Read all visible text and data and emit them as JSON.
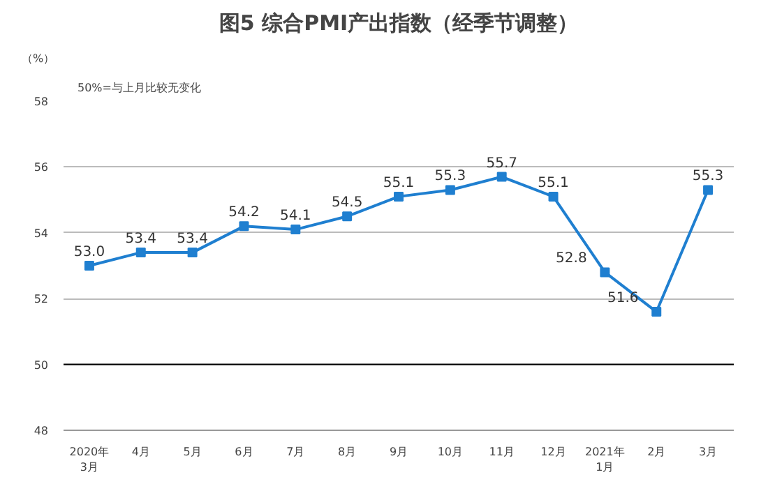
{
  "chart_data": {
    "type": "line",
    "title": "图5 综合PMI产出指数（经季节调整）",
    "ylabel": "（%）",
    "annotations": [
      "50%=与上月比较无变化"
    ],
    "categories": [
      "2020年\n3月",
      "4月",
      "5月",
      "6月",
      "7月",
      "8月",
      "9月",
      "10月",
      "11月",
      "12月",
      "2021年\n1月",
      "2月",
      "3月"
    ],
    "series": [
      {
        "color": "#1f7fd0",
        "values": [
          53.0,
          53.4,
          53.4,
          54.2,
          54.1,
          54.5,
          55.1,
          55.3,
          55.7,
          55.1,
          52.8,
          51.6,
          55.3
        ],
        "value_labels": [
          "53.0",
          "53.4",
          "53.4",
          "54.2",
          "54.1",
          "54.5",
          "55.1",
          "55.3",
          "55.7",
          "55.1",
          "52.8",
          "51.6",
          "55.3"
        ]
      }
    ],
    "ylim": [
      48,
      58
    ],
    "yticks": [
      48,
      50,
      52,
      54,
      56,
      58
    ],
    "grid": "y",
    "marker": "square",
    "line_style": "solid",
    "ref_lines": [
      {
        "axis": "y",
        "value": 50,
        "color": "#000000"
      }
    ]
  }
}
